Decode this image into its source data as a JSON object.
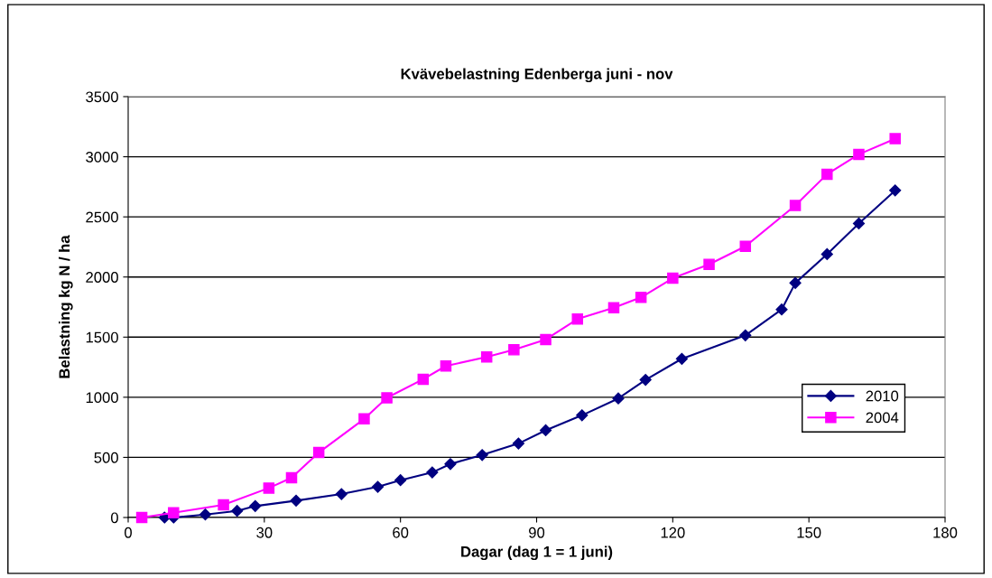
{
  "chart_data": {
    "type": "line",
    "title": "Kvävebelastning Edenberga juni - nov",
    "xlabel": "Dagar (dag 1 = 1 juni)",
    "ylabel": "Belastning kg N / ha",
    "xlim": [
      0,
      180
    ],
    "xticks": [
      0,
      30,
      60,
      90,
      120,
      150,
      180
    ],
    "ylim": [
      0,
      3500
    ],
    "yticks": [
      0,
      500,
      1000,
      1500,
      2000,
      2500,
      3000,
      3500
    ],
    "grid": "y",
    "legend": "right",
    "series": [
      {
        "name": "2010",
        "color": "#000080",
        "marker": "diamond",
        "x": [
          8,
          10,
          17,
          24,
          28,
          37,
          47,
          55,
          60,
          67,
          71,
          78,
          86,
          92,
          100,
          108,
          114,
          122,
          136,
          144,
          147,
          154,
          161,
          169
        ],
        "values": [
          0,
          0,
          25,
          55,
          95,
          140,
          195,
          255,
          310,
          375,
          445,
          520,
          615,
          725,
          850,
          990,
          1145,
          1320,
          1515,
          1730,
          1950,
          2190,
          2445,
          2720
        ]
      },
      {
        "name": "2004",
        "color": "#ff00ff",
        "marker": "square",
        "x": [
          3,
          10,
          21,
          31,
          36,
          42,
          52,
          57,
          65,
          70,
          79,
          85,
          92,
          99,
          107,
          113,
          120,
          128,
          136,
          147,
          154,
          161,
          169
        ],
        "values": [
          0,
          40,
          105,
          245,
          330,
          540,
          820,
          995,
          1150,
          1260,
          1335,
          1395,
          1480,
          1650,
          1745,
          1830,
          1990,
          2105,
          2255,
          2595,
          2855,
          3020,
          3150
        ]
      }
    ]
  }
}
